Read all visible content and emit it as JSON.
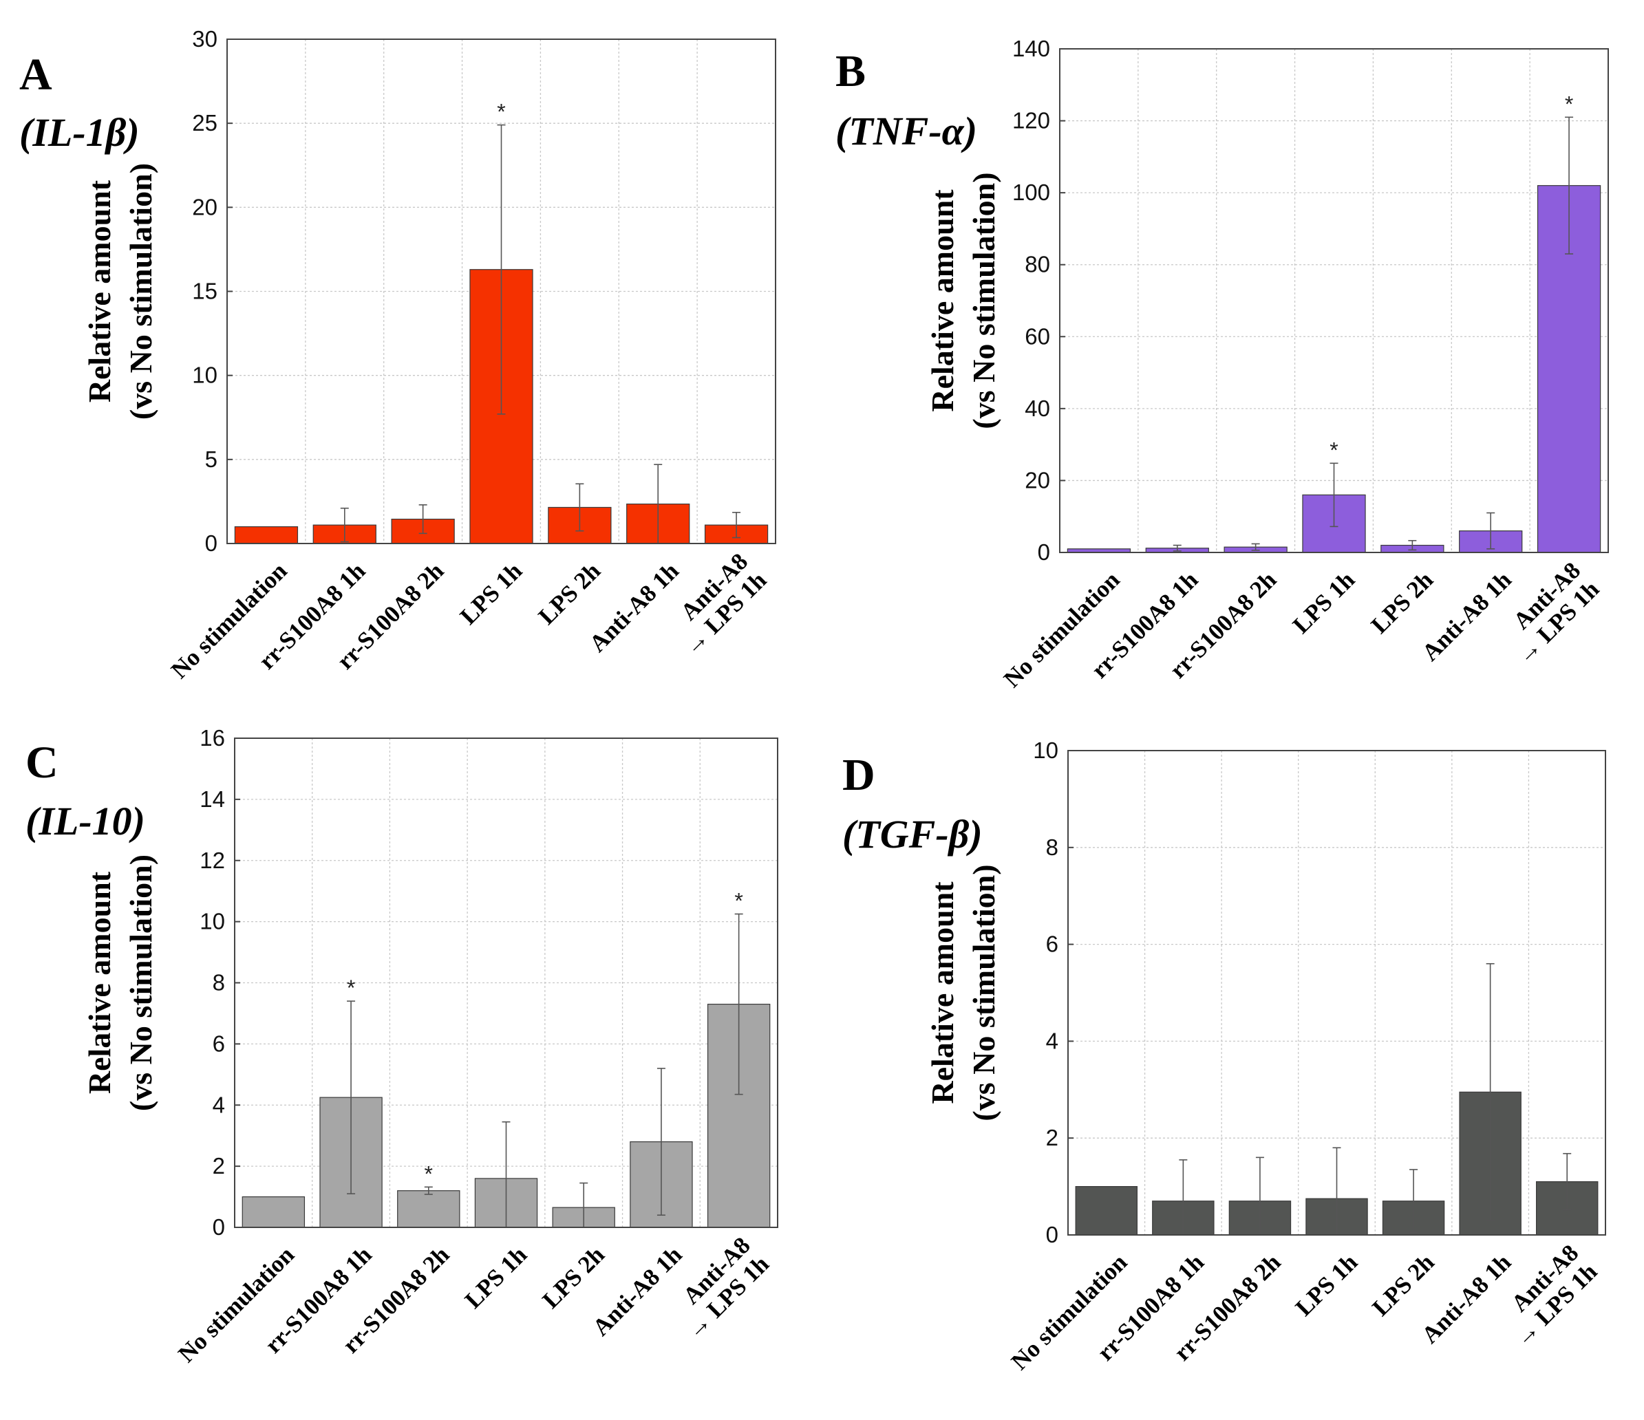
{
  "chart_data": [
    {
      "type": "bar",
      "panel": "A",
      "title": "(IL-1β)",
      "ylabel": [
        "Relative amount",
        "(vs No stimulation)"
      ],
      "xlabel": "",
      "ylim": [
        0,
        30
      ],
      "yticks": [
        0,
        5,
        10,
        15,
        20,
        25,
        30
      ],
      "grid": true,
      "color": "#f53100",
      "categories": [
        "No stimulation",
        "rr-S100A8 1h",
        "rr-S100A8 2h",
        "LPS 1h",
        "LPS 2h",
        "Anti-A8 1h",
        [
          "Anti-A8",
          "→ LPS 1h"
        ]
      ],
      "values": [
        1.0,
        1.1,
        1.45,
        16.3,
        2.15,
        2.35,
        1.1
      ],
      "errors": [
        0,
        1.0,
        0.85,
        8.6,
        1.4,
        2.35,
        0.75
      ],
      "significant": [
        false,
        false,
        false,
        true,
        false,
        false,
        false
      ],
      "sig_marker": "*"
    },
    {
      "type": "bar",
      "panel": "B",
      "title": "(TNF-α)",
      "ylabel": [
        "Relative amount",
        "(vs No stimulation)"
      ],
      "xlabel": "",
      "ylim": [
        0,
        140
      ],
      "yticks": [
        0,
        20,
        40,
        60,
        80,
        100,
        120,
        140
      ],
      "grid": true,
      "color": "#8d5edc",
      "categories": [
        "No stimulation",
        "rr-S100A8 1h",
        "rr-S100A8 2h",
        "LPS 1h",
        "LPS 2h",
        "Anti-A8 1h",
        [
          "Anti-A8",
          "→ LPS 1h"
        ]
      ],
      "values": [
        1.0,
        1.2,
        1.5,
        16.0,
        2.0,
        6.0,
        102.0
      ],
      "errors": [
        0,
        0.8,
        0.9,
        8.8,
        1.3,
        5.0,
        19.0
      ],
      "significant": [
        false,
        false,
        false,
        true,
        false,
        false,
        true
      ],
      "sig_marker": "*"
    },
    {
      "type": "bar",
      "panel": "C",
      "title": "(IL-10)",
      "ylabel": [
        "Relative amount",
        "(vs No stimulation)"
      ],
      "xlabel": "",
      "ylim": [
        0,
        16
      ],
      "yticks": [
        0,
        2,
        4,
        6,
        8,
        10,
        12,
        14,
        16
      ],
      "grid": true,
      "color": "#a6a6a6",
      "categories": [
        "No stimulation",
        "rr-S100A8 1h",
        "rr-S100A8 2h",
        "LPS 1h",
        "LPS 2h",
        "Anti-A8 1h",
        [
          "Anti-A8",
          "→ LPS 1h"
        ]
      ],
      "values": [
        1.0,
        4.25,
        1.2,
        1.6,
        0.65,
        2.8,
        7.3
      ],
      "errors": [
        0,
        3.15,
        0.12,
        1.85,
        0.8,
        2.4,
        2.95
      ],
      "significant": [
        false,
        true,
        true,
        false,
        false,
        false,
        true
      ],
      "sig_marker": "*"
    },
    {
      "type": "bar",
      "panel": "D",
      "title": "(TGF-β)",
      "ylabel": [
        "Relative amount",
        "(vs No stimulation)"
      ],
      "xlabel": "",
      "ylim": [
        0,
        10
      ],
      "yticks": [
        0,
        2,
        4,
        6,
        8,
        10
      ],
      "grid": true,
      "color": "#535553",
      "categories": [
        "No stimulation",
        "rr-S100A8 1h",
        "rr-S100A8 2h",
        "LPS 1h",
        "LPS 2h",
        "Anti-A8 1h",
        [
          "Anti-A8",
          "→ LPS 1h"
        ]
      ],
      "values": [
        1.0,
        0.7,
        0.7,
        0.75,
        0.7,
        2.95,
        1.1
      ],
      "errors": [
        0,
        0.85,
        0.9,
        1.05,
        0.65,
        2.65,
        0.58
      ],
      "significant": [
        false,
        false,
        false,
        false,
        false,
        false,
        false
      ],
      "sig_marker": "*"
    }
  ]
}
